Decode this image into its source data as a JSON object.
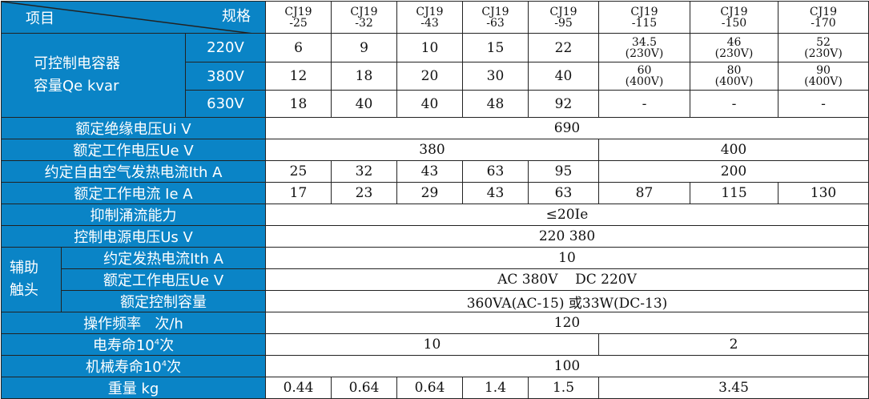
{
  "header": {
    "item_label": "项目",
    "spec_label": "规格",
    "models": [
      [
        "CJ19",
        "-25"
      ],
      [
        "CJ19",
        "-32"
      ],
      [
        "CJ19",
        "-43"
      ],
      [
        "CJ19",
        "-63"
      ],
      [
        "CJ19",
        "-95"
      ],
      [
        "CJ19",
        "-115"
      ],
      [
        "CJ19",
        "-150"
      ],
      [
        "CJ19",
        "-170"
      ]
    ]
  },
  "capacitor": {
    "label_line1": "可控制电容器",
    "label_line2": "容量Qe kvar",
    "rows": [
      {
        "voltage": "220V",
        "values": [
          "6",
          "9",
          "10",
          "15",
          "22",
          [
            "34.5",
            "(230V)"
          ],
          [
            "46",
            "(230V)"
          ],
          [
            "52",
            "(230V)"
          ]
        ]
      },
      {
        "voltage": "380V",
        "values": [
          "12",
          "18",
          "20",
          "30",
          "40",
          [
            "60",
            "(400V)"
          ],
          [
            "80",
            "(400V)"
          ],
          [
            "90",
            "(400V)"
          ]
        ]
      },
      {
        "voltage": "630V",
        "values": [
          "18",
          "40",
          "40",
          "48",
          "92",
          "-",
          "-",
          "-"
        ]
      }
    ]
  },
  "rows": {
    "ui": {
      "label": "额定绝缘电压Ui  V",
      "value": "690"
    },
    "ue": {
      "label": "额定工作电压Ue  V",
      "value_a": "380",
      "value_b": "400"
    },
    "ith": {
      "label": "约定自由空气发热电流Ith  A",
      "values": [
        "25",
        "32",
        "43",
        "63",
        "95"
      ],
      "value_rest": "200"
    },
    "ie": {
      "label": "额定工作电流 Ie  A",
      "values": [
        "17",
        "23",
        "29",
        "43",
        "63",
        "87",
        "115",
        "130"
      ]
    },
    "inrush": {
      "label": "抑制涌流能力",
      "value": "≤20Ie"
    },
    "us": {
      "label": "控制电源电压Us   V",
      "value": "220 380"
    },
    "aux": {
      "label_line1": "辅助",
      "label_line2": "触头",
      "ith": {
        "label": "约定发热电流Ith  A",
        "value": "10"
      },
      "ue": {
        "label": "额定工作电压Ue   V",
        "value": "AC 380V    DC 220V"
      },
      "cap": {
        "label": "额定控制容量",
        "value": "360VA(AC-15) 或33W(DC-13)"
      }
    },
    "freq": {
      "label": "操作频率   次/h",
      "value": "120"
    },
    "elec_life": {
      "label_pre": "电寿命10",
      "label_sup": "4",
      "label_post": "次",
      "value_a": "10",
      "value_b": "2"
    },
    "mech_life": {
      "label_pre": "机械寿命10",
      "label_sup": "4",
      "label_post": "次",
      "value": "100"
    },
    "weight": {
      "label": "重量 kg",
      "values": [
        "0.44",
        "0.64",
        "0.64",
        "1.4",
        "1.5"
      ],
      "value_rest": "3.45"
    }
  }
}
